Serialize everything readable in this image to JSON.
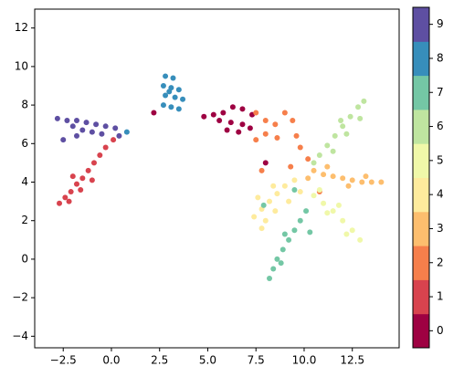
{
  "chart_data": {
    "type": "scatter",
    "xlim": [
      -3.98,
      14.93
    ],
    "ylim": [
      -4.6,
      12.98
    ],
    "xticks": [
      {
        "value": -2.5,
        "label": "−2.5"
      },
      {
        "value": 0,
        "label": "0.0"
      },
      2.5,
      {
        "value": 5,
        "label": "5.0"
      },
      7.5,
      {
        "value": 10,
        "label": "10.0"
      },
      12.5
    ],
    "yticks": [
      {
        "value": -4,
        "label": "−4"
      },
      {
        "value": -2,
        "label": "−2"
      },
      0,
      2,
      4,
      6,
      8,
      10,
      12
    ],
    "series": [
      {
        "name": "0",
        "color": "#9e0142",
        "x": [
          4.8,
          5.3,
          5.8,
          6.3,
          6.8,
          7.3,
          5.6,
          6.2,
          6.8,
          6.0,
          6.6,
          7.2,
          2.2,
          8.0
        ],
        "values": [
          7.4,
          7.5,
          7.6,
          7.9,
          7.8,
          7.5,
          7.2,
          7.1,
          7.0,
          6.7,
          6.6,
          6.8,
          7.6,
          5.0
        ]
      },
      {
        "name": "1",
        "color": "#d8434e",
        "x": [
          -2.7,
          -2.4,
          -2.1,
          -1.8,
          -1.5,
          -1.2,
          -0.9,
          -0.6,
          -0.3,
          0.1,
          -2.2,
          -1.6,
          -2.0,
          -1.0
        ],
        "values": [
          2.9,
          3.2,
          3.5,
          3.9,
          4.2,
          4.6,
          5.0,
          5.4,
          5.8,
          6.2,
          3.0,
          3.6,
          4.3,
          4.1
        ]
      },
      {
        "name": "2",
        "color": "#f67f4b",
        "x": [
          7.5,
          8.0,
          8.5,
          9.0,
          9.4,
          9.6,
          9.8,
          8.6,
          8.0,
          7.5,
          10.2,
          9.3,
          7.8,
          10.8
        ],
        "values": [
          7.6,
          7.2,
          7.0,
          7.6,
          7.2,
          6.4,
          5.8,
          6.3,
          6.5,
          6.2,
          5.2,
          4.8,
          4.6,
          3.5
        ]
      },
      {
        "name": "3",
        "color": "#fdbe6e",
        "x": [
          10.5,
          11.0,
          11.5,
          12.0,
          12.5,
          13.0,
          13.5,
          14.0,
          11.2,
          12.3,
          13.2,
          10.2
        ],
        "values": [
          4.6,
          4.4,
          4.3,
          4.2,
          4.1,
          4.0,
          4.0,
          4.0,
          4.8,
          3.8,
          4.3,
          4.2
        ]
      },
      {
        "name": "4",
        "color": "#feeb9d",
        "x": [
          7.4,
          7.8,
          8.2,
          8.6,
          9.0,
          9.5,
          8.0,
          8.5,
          9.2,
          7.6,
          8.4,
          9.8,
          7.8
        ],
        "values": [
          2.2,
          2.6,
          3.0,
          3.4,
          3.8,
          4.1,
          2.0,
          2.5,
          3.0,
          3.2,
          3.8,
          3.5,
          1.6
        ]
      },
      {
        "name": "5",
        "color": "#f0f8a9",
        "x": [
          10.5,
          11.0,
          11.5,
          12.0,
          12.5,
          12.9,
          11.2,
          12.2,
          10.8,
          11.8
        ],
        "values": [
          3.3,
          2.9,
          2.5,
          2.0,
          1.5,
          1.0,
          2.4,
          1.3,
          3.6,
          2.8
        ]
      },
      {
        "name": "6",
        "color": "#bfe5a0",
        "x": [
          10.8,
          11.2,
          11.6,
          12.0,
          12.4,
          12.8,
          13.1,
          11.5,
          12.2,
          12.9,
          10.5,
          11.9
        ],
        "values": [
          5.4,
          5.9,
          6.4,
          6.9,
          7.4,
          7.9,
          8.2,
          5.6,
          6.5,
          7.3,
          5.0,
          7.2
        ]
      },
      {
        "name": "7",
        "color": "#74c7a5",
        "x": [
          8.2,
          8.4,
          8.6,
          8.9,
          9.2,
          9.5,
          9.8,
          10.1,
          9.0,
          8.8,
          10.3,
          9.5,
          7.9
        ],
        "values": [
          -1.0,
          -0.5,
          0.0,
          0.5,
          1.0,
          1.5,
          2.0,
          2.5,
          1.3,
          -0.2,
          1.4,
          3.6,
          2.8
        ]
      },
      {
        "name": "8",
        "color": "#378ebb",
        "x": [
          2.8,
          3.2,
          2.7,
          3.1,
          3.5,
          2.8,
          3.3,
          3.7,
          2.7,
          3.1,
          3.5,
          0.8,
          3.0
        ],
        "values": [
          9.5,
          9.4,
          9.0,
          8.9,
          8.8,
          8.5,
          8.4,
          8.3,
          8.0,
          7.9,
          7.8,
          6.6,
          8.7
        ]
      },
      {
        "name": "9",
        "color": "#5e4fa2",
        "x": [
          -2.8,
          -2.3,
          -1.8,
          -1.3,
          -0.8,
          -0.3,
          0.2,
          -2.0,
          -1.5,
          -1.0,
          -0.5,
          -1.8,
          -2.5,
          0.4
        ],
        "values": [
          7.3,
          7.2,
          7.2,
          7.1,
          7.0,
          6.9,
          6.8,
          6.9,
          6.7,
          6.6,
          6.5,
          6.4,
          6.2,
          6.4
        ]
      }
    ]
  }
}
